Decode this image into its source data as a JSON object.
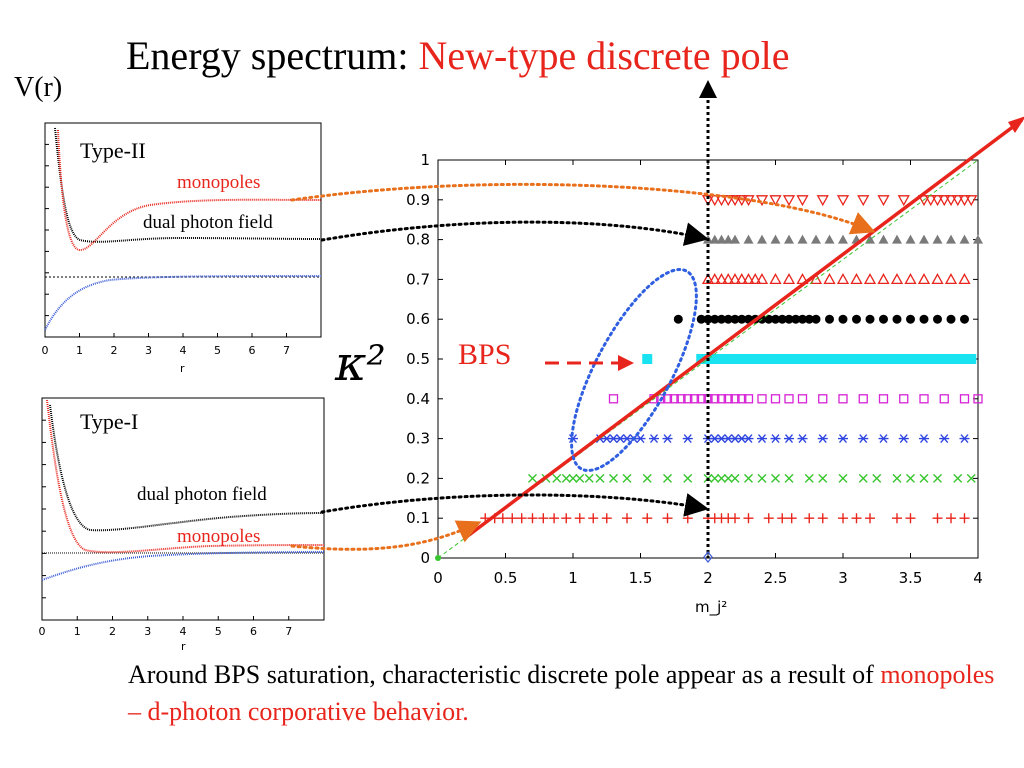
{
  "slide": {
    "title_prefix": "Energy spectrum: ",
    "title_accent": "New-type discrete pole",
    "vr_label": "V(r)",
    "caption_prefix": "Around BPS saturation, characteristic discrete pole appear as a result of ",
    "caption_accent": "monopoles – d-photon corporative behavior.",
    "bps_label": "BPS",
    "kappa_label": "κ²"
  },
  "colors": {
    "accent": "#e8251c",
    "black": "#000000",
    "blue": "#3b5bd6",
    "cyan": "#19e3f0",
    "magenta": "#d624d6",
    "green": "#39c52f",
    "gray": "#7a7a7a",
    "orange": "#e8701c",
    "blue_dash": "#2f5fe0"
  },
  "chart_data": [
    {
      "type": "scatter",
      "id": "spectrum",
      "xlabel": "m_j²",
      "ylabel": "κ²",
      "xlim": [
        0,
        4
      ],
      "ylim": [
        0,
        1
      ],
      "x_ticks": [
        "0",
        "0.5",
        "1",
        "1.5",
        "2",
        "2.5",
        "3",
        "3.5",
        "4"
      ],
      "y_ticks": [
        "0",
        "0.1",
        "0.2",
        "0.3",
        "0.4",
        "0.5",
        "0.6",
        "0.7",
        "0.8",
        "0.9",
        "1"
      ],
      "vertical_marker_x": 2,
      "bps_line": {
        "x": [
          0.2,
          4
        ],
        "y": [
          0.05,
          1
        ]
      },
      "series": [
        {
          "y": 0.1,
          "marker": "plus",
          "color": "#e8251c",
          "x": [
            0.35,
            0.42,
            0.48,
            0.55,
            0.62,
            0.7,
            0.78,
            0.86,
            0.95,
            1.05,
            1.15,
            1.25,
            1.4,
            1.55,
            1.7,
            1.85,
            2.0,
            2.05,
            2.1,
            2.15,
            2.2,
            2.3,
            2.45,
            2.55,
            2.62,
            2.75,
            2.85,
            3.0,
            3.1,
            3.2,
            3.4,
            3.5,
            3.7,
            3.8,
            3.9
          ]
        },
        {
          "y": 0.2,
          "marker": "cross",
          "color": "#39c52f",
          "x": [
            0.7,
            0.8,
            0.88,
            0.95,
            1.0,
            1.05,
            1.12,
            1.2,
            1.3,
            1.4,
            1.55,
            1.7,
            1.85,
            2.0,
            2.05,
            2.1,
            2.15,
            2.2,
            2.3,
            2.4,
            2.5,
            2.6,
            2.75,
            2.85,
            3.0,
            3.15,
            3.25,
            3.4,
            3.5,
            3.6,
            3.7,
            3.85,
            3.95
          ]
        },
        {
          "y": 0.3,
          "marker": "star",
          "color": "#2f46e0",
          "x": [
            1.0,
            1.2,
            1.25,
            1.3,
            1.35,
            1.4,
            1.45,
            1.5,
            1.6,
            1.7,
            1.85,
            2.0,
            2.05,
            2.1,
            2.15,
            2.2,
            2.25,
            2.3,
            2.4,
            2.5,
            2.6,
            2.7,
            2.85,
            3.0,
            3.15,
            3.3,
            3.45,
            3.6,
            3.75,
            3.9
          ]
        },
        {
          "y": 0.4,
          "marker": "square-open",
          "color": "#d624d6",
          "x": [
            1.3,
            1.6,
            1.65,
            1.7,
            1.75,
            1.8,
            1.85,
            1.9,
            1.95,
            2.0,
            2.05,
            2.1,
            2.15,
            2.2,
            2.25,
            2.3,
            2.4,
            2.5,
            2.6,
            2.7,
            2.85,
            3.0,
            3.15,
            3.3,
            3.45,
            3.6,
            3.75,
            3.9,
            4.0
          ]
        },
        {
          "y": 0.5,
          "marker": "square-filled",
          "color": "#19e3f0",
          "x": [
            1.55,
            1.95,
            2.0,
            2.05,
            2.1,
            2.15,
            2.2,
            2.25,
            2.3,
            2.35,
            2.4,
            2.45,
            2.5,
            2.55,
            2.6,
            2.65,
            2.7,
            2.75,
            2.8,
            2.85,
            2.9,
            2.95,
            3.0,
            3.05,
            3.1,
            3.15,
            3.2,
            3.25,
            3.3,
            3.35,
            3.4,
            3.45,
            3.5,
            3.55,
            3.6,
            3.65,
            3.7,
            3.75,
            3.8,
            3.85,
            3.9,
            3.95
          ]
        },
        {
          "y": 0.6,
          "marker": "circle-filled",
          "color": "#000000",
          "x": [
            1.78,
            1.95,
            2.0,
            2.05,
            2.1,
            2.15,
            2.2,
            2.25,
            2.3,
            2.35,
            2.4,
            2.45,
            2.5,
            2.55,
            2.6,
            2.65,
            2.7,
            2.75,
            2.8,
            2.9,
            3.0,
            3.1,
            3.2,
            3.3,
            3.4,
            3.5,
            3.6,
            3.7,
            3.8,
            3.9
          ]
        },
        {
          "y": 0.7,
          "marker": "triangle-open",
          "color": "#e8251c",
          "x": [
            2.0,
            2.05,
            2.1,
            2.15,
            2.2,
            2.25,
            2.3,
            2.35,
            2.4,
            2.5,
            2.6,
            2.7,
            2.8,
            2.9,
            3.0,
            3.1,
            3.2,
            3.3,
            3.4,
            3.5,
            3.6,
            3.7,
            3.8,
            3.9
          ]
        },
        {
          "y": 0.8,
          "marker": "triangle-filled",
          "color": "#7a7a7a",
          "x": [
            2.0,
            2.05,
            2.1,
            2.15,
            2.2,
            2.3,
            2.4,
            2.5,
            2.6,
            2.7,
            2.8,
            2.9,
            3.0,
            3.1,
            3.2,
            3.3,
            3.4,
            3.5,
            3.6,
            3.7,
            3.8,
            3.9,
            4.0
          ]
        },
        {
          "y": 0.9,
          "marker": "triangle-down-open",
          "color": "#e8251c",
          "x": [
            2.0,
            2.05,
            2.1,
            2.15,
            2.2,
            2.25,
            2.3,
            2.4,
            2.5,
            2.6,
            2.7,
            2.85,
            3.0,
            3.15,
            3.3,
            3.45,
            3.6,
            3.65,
            3.7,
            3.75,
            3.8,
            3.85,
            3.9,
            3.95
          ]
        }
      ]
    },
    {
      "type": "line",
      "id": "type-ii",
      "title": "Type-II",
      "xlabel": "r",
      "xlim": [
        0,
        8
      ],
      "x_ticks": [
        "0",
        "1",
        "2",
        "3",
        "4",
        "5",
        "6",
        "7"
      ],
      "series": [
        {
          "name": "monopoles",
          "color": "#e8251c"
        },
        {
          "name": "dual photon field",
          "color": "#000000"
        },
        {
          "name": "",
          "color": "#3b5bd6"
        }
      ]
    },
    {
      "type": "line",
      "id": "type-i",
      "title": "Type-I",
      "xlabel": "r",
      "xlim": [
        0,
        8
      ],
      "x_ticks": [
        "0",
        "1",
        "2",
        "3",
        "4",
        "5",
        "6",
        "7"
      ],
      "series": [
        {
          "name": "dual photon field",
          "color": "#000000"
        },
        {
          "name": "monopoles",
          "color": "#e8251c"
        },
        {
          "name": "",
          "color": "#3b5bd6"
        }
      ]
    }
  ]
}
